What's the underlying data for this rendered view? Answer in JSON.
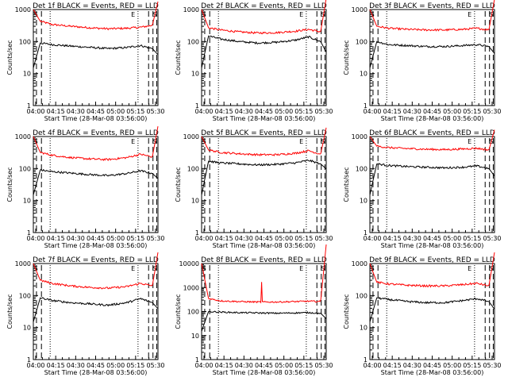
{
  "chart_data": [
    {
      "type": "line",
      "title": "Det 1f BLACK = Events, RED = LLD",
      "xlabel": "Start Time (28-Mar-08 03:56:00)",
      "ylabel": "Counts/sec",
      "yscale": "log",
      "ylim": [
        1,
        1000
      ],
      "yticks": [
        "1",
        "10",
        "100",
        "1000"
      ],
      "xticks": [
        "04:00",
        "04:15",
        "04:30",
        "04:45",
        "05:00",
        "05:15",
        "05:30"
      ],
      "markers": [
        "S",
        "E",
        "S"
      ],
      "series": [
        {
          "color": "#ff0000",
          "values": [
            1000,
            430,
            340,
            300,
            270,
            250,
            260,
            280,
            320,
            1000
          ]
        },
        {
          "color": "#000000",
          "values": [
            15,
            90,
            80,
            72,
            66,
            60,
            65,
            75,
            60,
            45
          ]
        }
      ]
    },
    {
      "type": "line",
      "title": "Det 2f BLACK = Events, RED = LLD",
      "xlabel": "Start Time (28-Mar-08 03:56:00)",
      "ylabel": "Counts/sec",
      "yscale": "log",
      "ylim": [
        1,
        1000
      ],
      "yticks": [
        "1",
        "10",
        "100",
        "1000"
      ],
      "xticks": [
        "04:00",
        "04:15",
        "04:30",
        "04:45",
        "05:00",
        "05:15",
        "05:30"
      ],
      "markers": [
        "S",
        "E",
        "S"
      ],
      "series": [
        {
          "color": "#ff0000",
          "values": [
            1000,
            270,
            230,
            200,
            185,
            190,
            210,
            240,
            200,
            1000
          ]
        },
        {
          "color": "#000000",
          "values": [
            15,
            150,
            120,
            100,
            90,
            95,
            110,
            140,
            100,
            60
          ]
        }
      ]
    },
    {
      "type": "line",
      "title": "Det 3f BLACK = Events, RED = LLD",
      "xlabel": "Start Time (28-Mar-08 03:56:00)",
      "ylabel": "Counts/sec",
      "yscale": "log",
      "ylim": [
        1,
        1000
      ],
      "yticks": [
        "1",
        "10",
        "100",
        "1000"
      ],
      "xticks": [
        "04:00",
        "04:15",
        "04:30",
        "04:45",
        "05:00",
        "05:15",
        "05:30"
      ],
      "markers": [
        "S",
        "E",
        "S"
      ],
      "series": [
        {
          "color": "#ff0000",
          "values": [
            1000,
            300,
            260,
            240,
            230,
            230,
            240,
            260,
            230,
            1000
          ]
        },
        {
          "color": "#000000",
          "values": [
            15,
            100,
            80,
            75,
            70,
            70,
            75,
            80,
            70,
            50
          ]
        }
      ]
    },
    {
      "type": "line",
      "title": "Det 4f BLACK = Events, RED = LLD",
      "xlabel": "Start Time (28-Mar-08 03:56:00)",
      "ylabel": "Counts/sec",
      "yscale": "log",
      "ylim": [
        1,
        1000
      ],
      "yticks": [
        "1",
        "10",
        "100",
        "1000"
      ],
      "xticks": [
        "04:00",
        "04:15",
        "04:30",
        "04:45",
        "05:00",
        "05:15",
        "05:30"
      ],
      "markers": [
        "S",
        "E",
        "S"
      ],
      "series": [
        {
          "color": "#ff0000",
          "values": [
            1000,
            320,
            260,
            220,
            200,
            190,
            220,
            280,
            230,
            1000
          ]
        },
        {
          "color": "#000000",
          "values": [
            15,
            90,
            80,
            72,
            65,
            60,
            70,
            85,
            70,
            55
          ]
        }
      ]
    },
    {
      "type": "line",
      "title": "Det 5f BLACK = Events, RED = LLD",
      "xlabel": "Start Time (28-Mar-08 03:56:00)",
      "ylabel": "Counts/sec",
      "yscale": "log",
      "ylim": [
        1,
        1000
      ],
      "yticks": [
        "1",
        "10",
        "100",
        "1000"
      ],
      "xticks": [
        "04:00",
        "04:15",
        "04:30",
        "04:45",
        "05:00",
        "05:15",
        "05:30"
      ],
      "markers": [
        "S",
        "E",
        "S"
      ],
      "series": [
        {
          "color": "#ff0000",
          "values": [
            1000,
            380,
            320,
            290,
            270,
            270,
            300,
            360,
            280,
            1000
          ]
        },
        {
          "color": "#000000",
          "values": [
            15,
            170,
            150,
            140,
            130,
            135,
            150,
            180,
            140,
            110
          ]
        }
      ]
    },
    {
      "type": "line",
      "title": "Det 6f BLACK = Events, RED = LLD",
      "xlabel": "Start Time (28-Mar-08 03:56:00)",
      "ylabel": "Counts/sec",
      "yscale": "log",
      "ylim": [
        1,
        1000
      ],
      "yticks": [
        "1",
        "10",
        "100",
        "1000"
      ],
      "xticks": [
        "04:00",
        "04:15",
        "04:30",
        "04:45",
        "05:00",
        "05:15",
        "05:30"
      ],
      "markers": [
        "S",
        "E",
        "S"
      ],
      "series": [
        {
          "color": "#ff0000",
          "values": [
            1000,
            500,
            450,
            420,
            400,
            390,
            410,
            430,
            380,
            1000
          ]
        },
        {
          "color": "#000000",
          "values": [
            15,
            140,
            125,
            115,
            110,
            105,
            110,
            120,
            100,
            70
          ]
        }
      ]
    },
    {
      "type": "line",
      "title": "Det 7f BLACK = Events, RED = LLD",
      "xlabel": "Start Time (28-Mar-08 03:56:00)",
      "ylabel": "Counts/sec",
      "yscale": "log",
      "ylim": [
        1,
        1000
      ],
      "yticks": [
        "1",
        "10",
        "100",
        "1000"
      ],
      "xticks": [
        "04:00",
        "04:15",
        "04:30",
        "04:45",
        "05:00",
        "05:15",
        "05:30"
      ],
      "markers": [
        "S",
        "E",
        "S"
      ],
      "series": [
        {
          "color": "#ff0000",
          "values": [
            1000,
            300,
            240,
            200,
            180,
            170,
            190,
            240,
            200,
            1000
          ]
        },
        {
          "color": "#000000",
          "values": [
            15,
            85,
            70,
            60,
            55,
            50,
            60,
            80,
            60,
            45
          ]
        }
      ]
    },
    {
      "type": "line",
      "title": "Det 8f BLACK = Events, RED = LLD",
      "xlabel": "Start Time (28-Mar-08 03:56:00)",
      "ylabel": "Counts/sec",
      "yscale": "log",
      "ylim": [
        1,
        10000
      ],
      "yticks": [
        "1",
        "10",
        "100",
        "1000",
        "10000"
      ],
      "xticks": [
        "04:00",
        "04:15",
        "04:30",
        "04:45",
        "05:00",
        "05:15",
        "05:30"
      ],
      "markers": [
        "S",
        "E",
        "S"
      ],
      "spike": {
        "x": 0.48,
        "value": 1700
      },
      "series": [
        {
          "color": "#ff0000",
          "values": [
            10000,
            350,
            280,
            260,
            250,
            250,
            260,
            270,
            260,
            10000
          ]
        },
        {
          "color": "#000000",
          "values": [
            15,
            100,
            95,
            90,
            88,
            85,
            88,
            90,
            85,
            60
          ]
        }
      ]
    },
    {
      "type": "line",
      "title": "Det 9f BLACK = Events, RED = LLD",
      "xlabel": "Start Time (28-Mar-08 03:56:00)",
      "ylabel": "Counts/sec",
      "yscale": "log",
      "ylim": [
        1,
        1000
      ],
      "yticks": [
        "1",
        "10",
        "100",
        "1000"
      ],
      "xticks": [
        "04:00",
        "04:15",
        "04:30",
        "04:45",
        "05:00",
        "05:15",
        "05:30"
      ],
      "markers": [
        "S",
        "E",
        "S"
      ],
      "series": [
        {
          "color": "#ff0000",
          "values": [
            1000,
            260,
            230,
            210,
            200,
            200,
            220,
            240,
            200,
            1000
          ]
        },
        {
          "color": "#000000",
          "values": [
            15,
            85,
            75,
            65,
            60,
            60,
            70,
            80,
            65,
            45
          ]
        }
      ]
    }
  ]
}
